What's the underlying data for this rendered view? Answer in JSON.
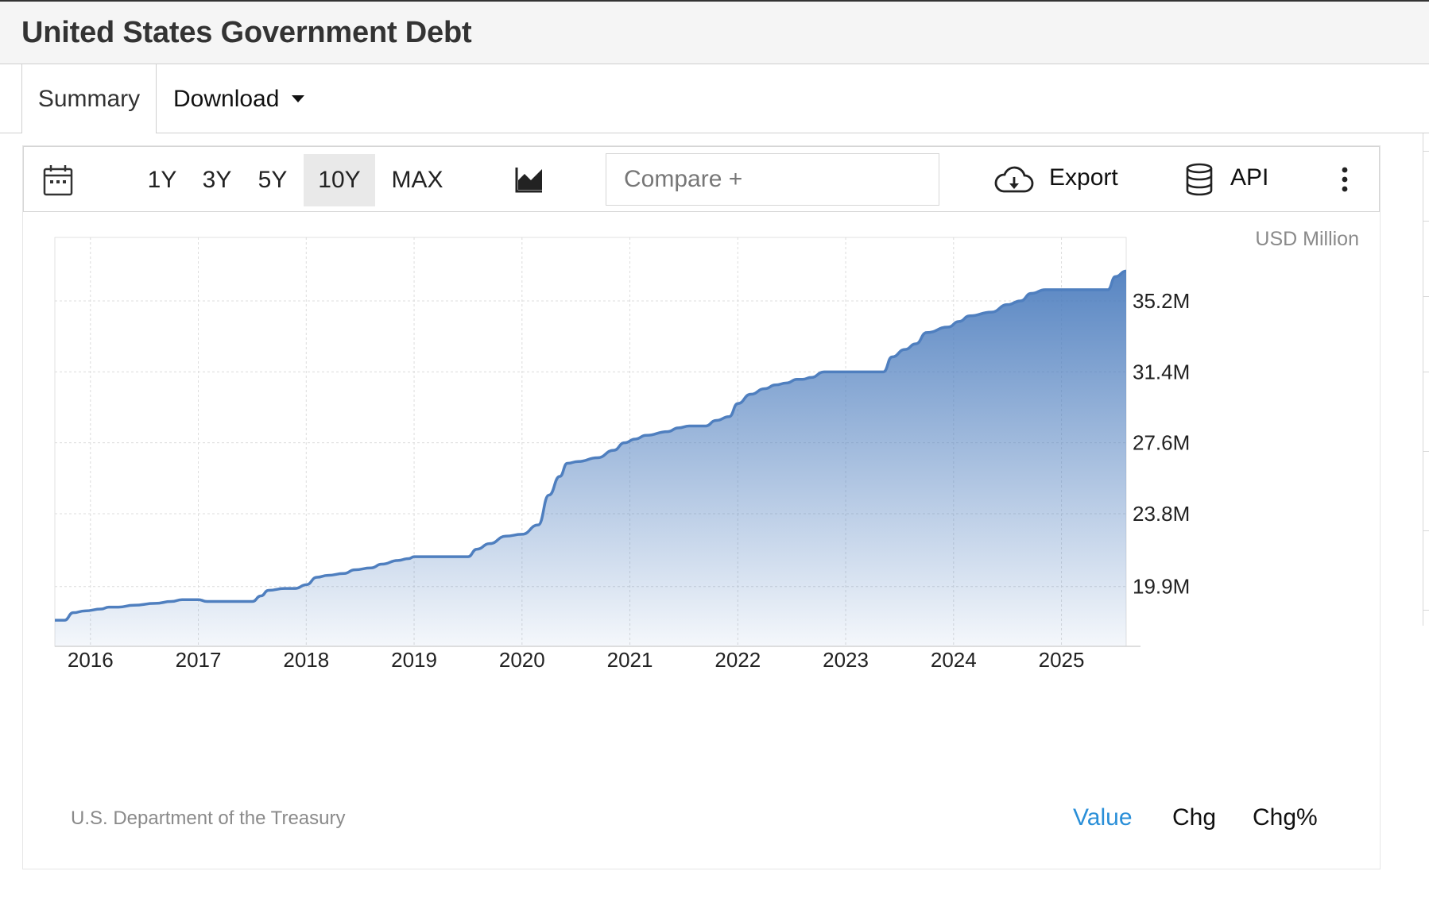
{
  "header": {
    "title": "United States Government Debt"
  },
  "tabs": {
    "summary": "Summary",
    "download": "Download"
  },
  "toolbar": {
    "ranges": [
      "1Y",
      "3Y",
      "5Y",
      "10Y",
      "MAX"
    ],
    "active_range": "10Y",
    "compare_placeholder": "Compare +",
    "export_label": "Export",
    "api_label": "API",
    "icons": [
      "calendar-icon",
      "area-chart-icon",
      "cloud-download-icon",
      "database-icon",
      "more-vertical-icon"
    ]
  },
  "footer": {
    "source": "U.S. Department of the Treasury",
    "modes": [
      "Value",
      "Chg",
      "Chg%"
    ],
    "active_mode": "Value"
  },
  "colors": {
    "series": "#4f7fbf",
    "active_mode": "#2a8fd8"
  },
  "chart_data": {
    "type": "area",
    "units": "USD Million",
    "y_ticks": [
      19.9,
      23.8,
      27.6,
      31.4,
      35.2
    ],
    "y_tick_labels": [
      "19.9M",
      "23.8M",
      "27.6M",
      "31.4M",
      "35.2M"
    ],
    "x_tick_labels": [
      "2016",
      "2017",
      "2018",
      "2019",
      "2020",
      "2021",
      "2022",
      "2023",
      "2024",
      "2025"
    ],
    "xlim": [
      2015.67,
      2025.6
    ],
    "ylim": [
      16.7,
      38.6
    ],
    "grid": true,
    "y_axis_position": "right",
    "series": [
      {
        "x": [
          2015.67,
          2015.76,
          2015.84,
          2015.95,
          2016.1,
          2016.17,
          2016.26,
          2016.4,
          2016.6,
          2016.75,
          2016.85,
          2017.0,
          2017.08,
          2017.15,
          2017.3,
          2017.5,
          2017.58,
          2017.65,
          2017.8,
          2017.9,
          2018.0,
          2018.1,
          2018.2,
          2018.35,
          2018.45,
          2018.6,
          2018.7,
          2018.85,
          2018.95,
          2019.0,
          2019.1,
          2019.2,
          2019.4,
          2019.5,
          2019.58,
          2019.7,
          2019.85,
          2020.0,
          2020.15,
          2020.25,
          2020.35,
          2020.42,
          2020.52,
          2020.7,
          2020.85,
          2020.95,
          2021.05,
          2021.15,
          2021.35,
          2021.45,
          2021.55,
          2021.7,
          2021.8,
          2021.92,
          2022.0,
          2022.12,
          2022.25,
          2022.35,
          2022.45,
          2022.55,
          2022.6,
          2022.68,
          2022.8,
          2022.95,
          2023.1,
          2023.35,
          2023.43,
          2023.55,
          2023.65,
          2023.75,
          2023.95,
          2024.05,
          2024.15,
          2024.35,
          2024.5,
          2024.62,
          2024.72,
          2024.85,
          2025.0,
          2025.2,
          2025.43,
          2025.5,
          2025.6
        ],
        "values": [
          18.1,
          18.1,
          18.5,
          18.6,
          18.7,
          18.8,
          18.8,
          18.9,
          19.0,
          19.1,
          19.2,
          19.2,
          19.1,
          19.1,
          19.1,
          19.1,
          19.4,
          19.7,
          19.8,
          19.8,
          20.0,
          20.4,
          20.5,
          20.6,
          20.8,
          20.9,
          21.1,
          21.3,
          21.4,
          21.5,
          21.5,
          21.5,
          21.5,
          21.5,
          21.9,
          22.2,
          22.6,
          22.7,
          23.2,
          24.8,
          25.8,
          26.5,
          26.6,
          26.8,
          27.2,
          27.6,
          27.8,
          28.0,
          28.2,
          28.4,
          28.5,
          28.5,
          28.8,
          29.0,
          29.7,
          30.2,
          30.5,
          30.7,
          30.8,
          31.0,
          31.0,
          31.1,
          31.4,
          31.4,
          31.4,
          31.4,
          32.2,
          32.6,
          32.9,
          33.5,
          33.8,
          34.1,
          34.4,
          34.6,
          35.0,
          35.2,
          35.6,
          35.8,
          35.8,
          35.8,
          35.8,
          36.5,
          36.8
        ]
      }
    ]
  }
}
